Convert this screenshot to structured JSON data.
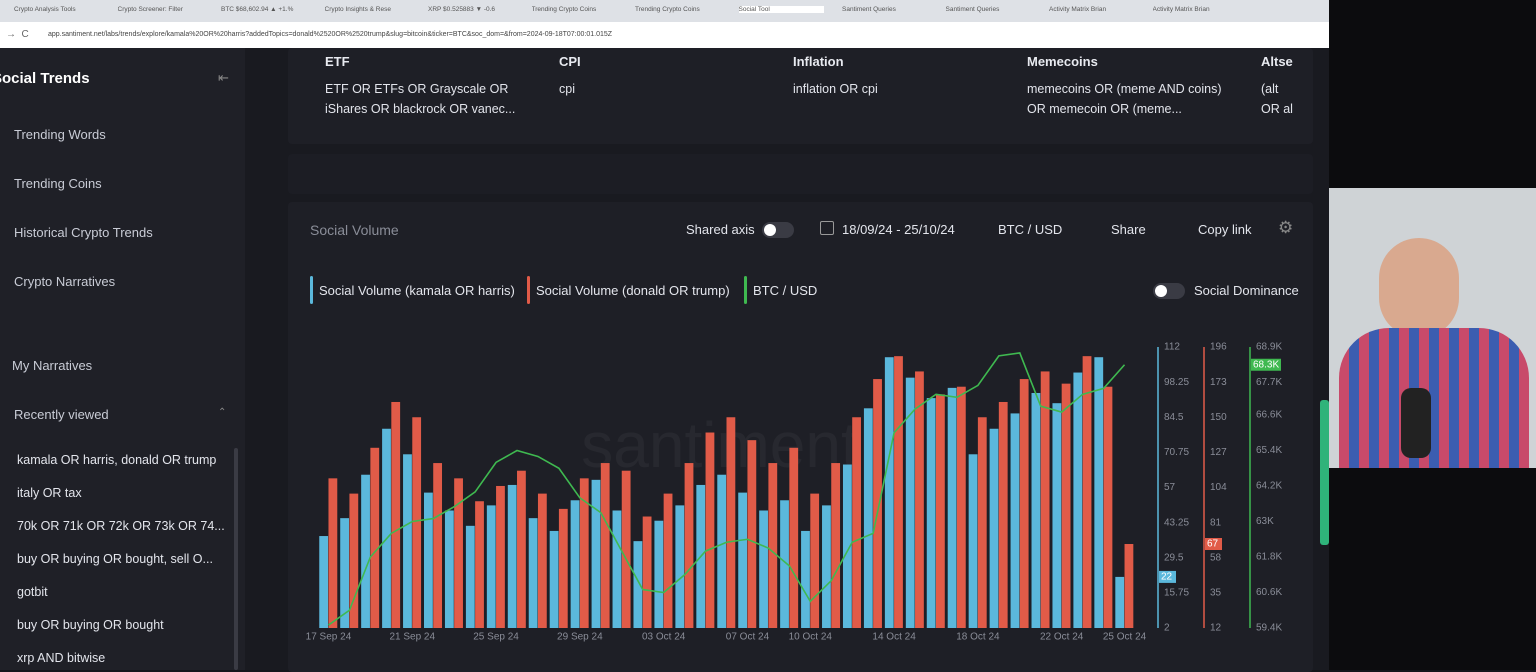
{
  "browser": {
    "tabs": [
      "Crypto Analysis Tools",
      "Crypto Screener: Filter",
      "BTC $68,602.94 ▲ +1.%",
      "Crypto Insights & Rese",
      "XRP $0.525883 ▼ -0.6",
      "Trending Crypto Coins",
      "Trending Crypto Coins",
      "Social Tool",
      "Santiment Queries",
      "Santiment Queries",
      "Activity Matrix Brian",
      "Activity Matrix Brian"
    ],
    "url": "app.santiment.net/labs/trends/explore/kamala%20OR%20harris?addedTopics=donald%2520OR%2520trump&slug=bitcoin&ticker=BTC&soc_dom=&from=2024-09-18T07:00:01.015Z"
  },
  "sidebar": {
    "title": "Social Trends",
    "nav": [
      "Trending Words",
      "Trending Coins",
      "Historical Crypto Trends",
      "Crypto Narratives"
    ],
    "my_narratives": "My Narratives",
    "recent_title": "Recently viewed",
    "recent": [
      "kamala OR harris, donald OR trump",
      "italy OR tax",
      "70k OR 71k OR 72k OR 73k OR 74...",
      "buy OR buying OR bought, sell O...",
      "gotbit",
      "buy OR buying OR bought",
      "xrp AND bitwise"
    ]
  },
  "table": {
    "headers": [
      "ETF",
      "CPI",
      "Inflation",
      "Memecoins",
      "Altse"
    ],
    "rows": [
      [
        "ETF OR ETFs OR Grayscale OR iShares OR blackrock OR vanec...",
        "cpi",
        "inflation OR cpi",
        "memecoins OR (meme AND coins) OR memecoin OR (meme...",
        "(alt OR al"
      ]
    ]
  },
  "controls": {
    "title": "Social Volume",
    "shared_axis": "Shared axis",
    "date_range": "18/09/24 - 25/10/24",
    "pair": "BTC / USD",
    "share": "Share",
    "copy_link": "Copy link",
    "social_dominance": "Social Dominance"
  },
  "chart_data": {
    "type": "bar",
    "watermark": "santiment",
    "categories": [
      "17 Sep 24",
      null,
      null,
      null,
      "21 Sep 24",
      null,
      null,
      null,
      "25 Sep 24",
      null,
      null,
      null,
      "29 Sep 24",
      null,
      null,
      null,
      "03 Oct 24",
      null,
      null,
      null,
      "07 Oct 24",
      null,
      null,
      "10 Oct 24",
      null,
      null,
      null,
      "14 Oct 24",
      null,
      null,
      null,
      "18 Oct 24",
      null,
      null,
      null,
      "22 Oct 24",
      null,
      null,
      "25 Oct 24"
    ],
    "series": [
      {
        "name": "Social Volume (kamala OR harris)",
        "color": "#5bb8dc",
        "axis": "y",
        "badge_label": "22",
        "values": [
          38,
          45,
          62,
          80,
          70,
          55,
          48,
          42,
          50,
          58,
          45,
          40,
          52,
          60,
          48,
          36,
          44,
          50,
          58,
          62,
          55,
          48,
          52,
          40,
          50,
          66,
          88,
          108,
          100,
          92,
          96,
          70,
          80,
          86,
          94,
          90,
          102,
          108,
          22
        ]
      },
      {
        "name": "Social Volume (donald OR trump)",
        "color": "#e15b48",
        "axis": "y2",
        "badge_label": "67",
        "values": [
          110,
          100,
          130,
          160,
          150,
          120,
          110,
          95,
          105,
          115,
          100,
          90,
          110,
          120,
          115,
          85,
          100,
          120,
          140,
          150,
          135,
          120,
          130,
          100,
          120,
          150,
          175,
          190,
          180,
          165,
          170,
          150,
          160,
          175,
          180,
          172,
          190,
          170,
          67
        ]
      },
      {
        "name": "BTC / USD",
        "color": "#3fb950",
        "axis": "y3",
        "type": "line",
        "badge_label": "68.3K",
        "values": [
          59500,
          60000,
          61800,
          62600,
          63000,
          63100,
          63500,
          64000,
          65000,
          65400,
          65200,
          64800,
          63800,
          63300,
          62000,
          60700,
          60600,
          61200,
          62000,
          62300,
          62400,
          62100,
          61500,
          60300,
          61000,
          62300,
          62600,
          66000,
          66800,
          67300,
          67200,
          67600,
          68600,
          68700,
          66900,
          66700,
          67300,
          67500,
          68300
        ]
      }
    ],
    "ylim": [
      2,
      112
    ],
    "yticks": [
      2,
      15.75,
      29.5,
      43.25,
      57,
      70.75,
      84.5,
      98.25,
      112
    ],
    "y2lim": [
      12,
      196
    ],
    "y2ticks": [
      12,
      35,
      58,
      81,
      104,
      127,
      150,
      173,
      196
    ],
    "y3lim": [
      59400,
      68900
    ],
    "y3ticks": [
      {
        "value": 59400,
        "label": "59.4K"
      },
      {
        "value": 60600,
        "label": "60.6K"
      },
      {
        "value": 61800,
        "label": "61.8K"
      },
      {
        "value": 63000,
        "label": "63K"
      },
      {
        "value": 64200,
        "label": "64.2K"
      },
      {
        "value": 65400,
        "label": "65.4K"
      },
      {
        "value": 66600,
        "label": "66.6K"
      },
      {
        "value": 67700,
        "label": "67.7K"
      },
      {
        "value": 68900,
        "label": "68.9K"
      }
    ]
  }
}
